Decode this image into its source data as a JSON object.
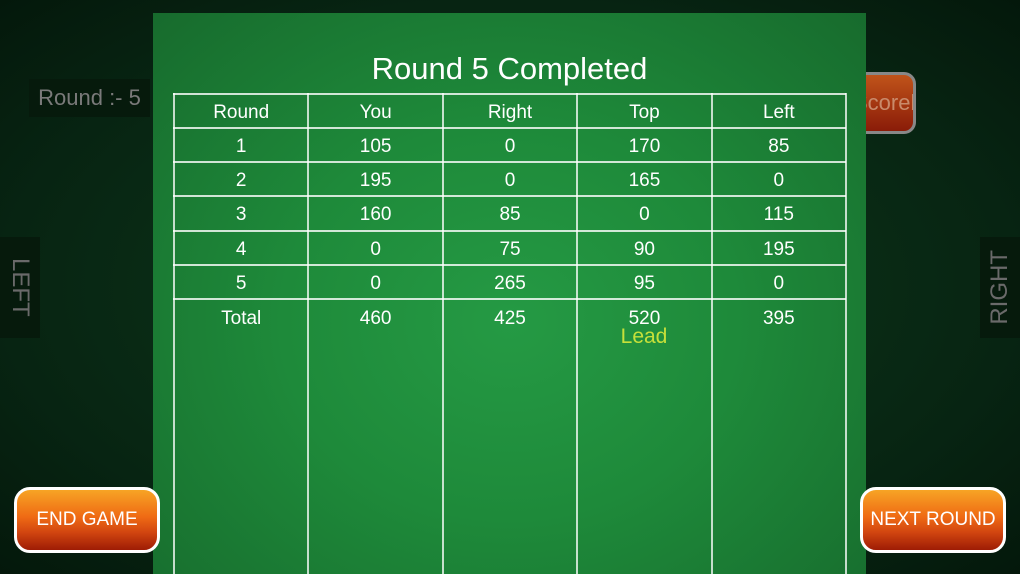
{
  "round_indicator": "Round :-  5",
  "side_labels": {
    "left": "LEFT",
    "right": "RIGHT"
  },
  "scoreboard_button": "Scoreboard",
  "dialog": {
    "title": "Round 5 Completed",
    "headers": [
      "Round",
      "You",
      "Right",
      "Top",
      "Left"
    ],
    "rows": [
      [
        "1",
        "105",
        "0",
        "170",
        "85"
      ],
      [
        "2",
        "195",
        "0",
        "165",
        "0"
      ],
      [
        "3",
        "160",
        "85",
        "0",
        "115"
      ],
      [
        "4",
        "0",
        "75",
        "90",
        "195"
      ],
      [
        "5",
        "0",
        "265",
        "95",
        "0"
      ],
      [
        "Total",
        "460",
        "425",
        "520",
        "395"
      ]
    ],
    "lead_label": "Lead",
    "lead_player": "Top"
  },
  "buttons": {
    "end_game": "END GAME",
    "next_round": "NEXT ROUND"
  },
  "colors": {
    "felt": "#1e8a3a",
    "lead": "#c6e03a",
    "button": "#ef6a14"
  }
}
